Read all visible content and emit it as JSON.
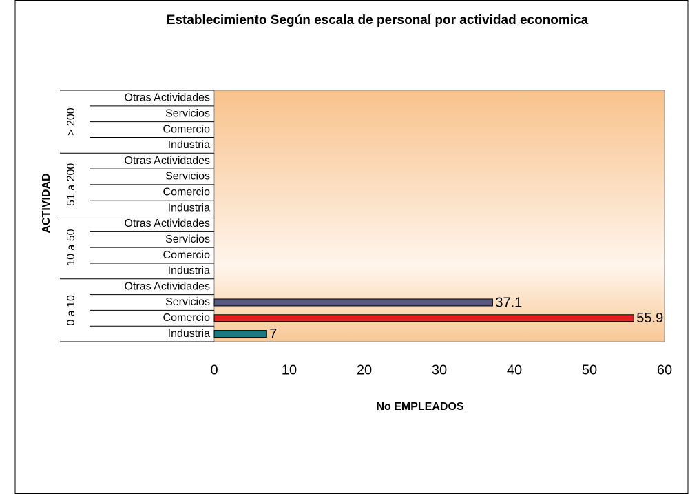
{
  "chart_data": {
    "type": "bar",
    "orientation": "horizontal",
    "title": "Establecimiento Según escala de personal por actividad economica",
    "x_label": "No EMPLEADOS",
    "y_label": "ACTIVIDAD",
    "groups": [
      "0 a 10",
      "10 a 50",
      "51 a 200",
      "> 200"
    ],
    "categories": [
      "Industria",
      "Comercio",
      "Servicios",
      "Otras Actividades",
      "Industria",
      "Comercio",
      "Servicios",
      "Otras Actividades",
      "Industria",
      "Comercio",
      "Servicios",
      "Otras Actividades",
      "Industria",
      "Comercio",
      "Servicios",
      "Otras Actividades"
    ],
    "values": [
      7,
      55.9,
      37.1,
      null,
      null,
      null,
      null,
      null,
      null,
      null,
      null,
      null,
      null,
      null,
      null,
      null
    ],
    "colors": {
      "Industria": "#1b7a80",
      "Comercio": "#e3201f",
      "Servicios": "#58587e"
    },
    "xlim": [
      0,
      60
    ],
    "xticks": [
      0,
      10,
      20,
      30,
      40,
      50,
      60
    ],
    "grid": false
  }
}
